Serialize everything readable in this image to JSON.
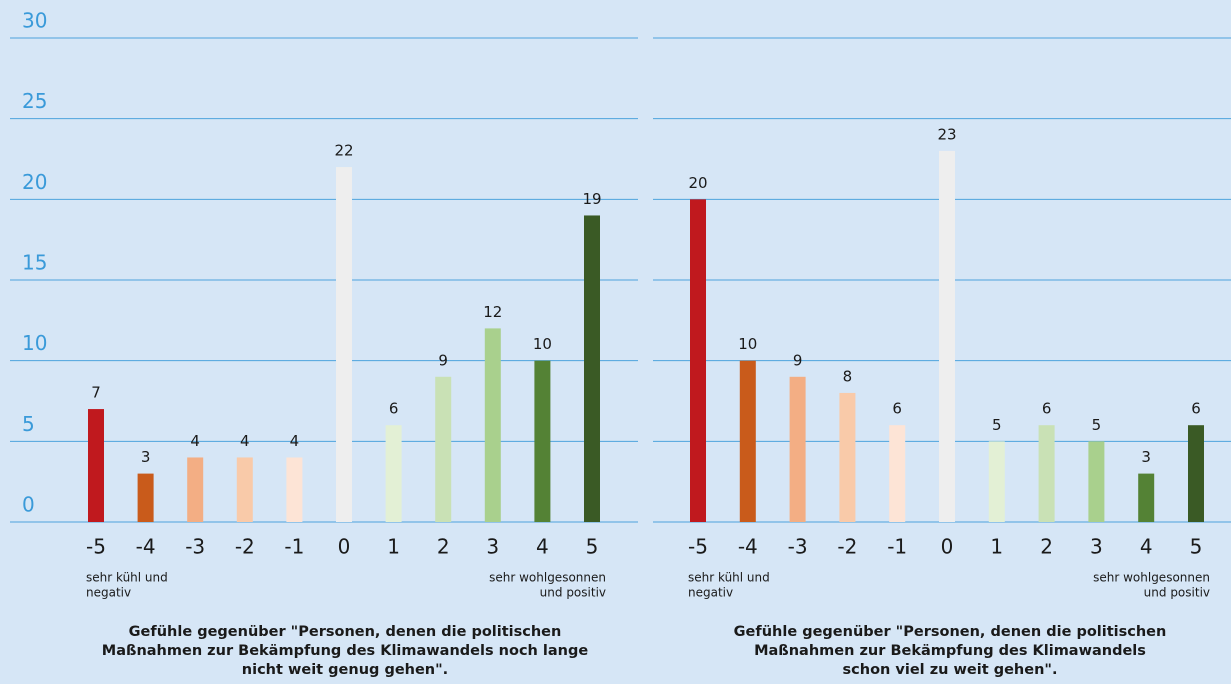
{
  "chart_data": [
    {
      "type": "bar",
      "categories": [
        "-5",
        "-4",
        "-3",
        "-2",
        "-1",
        "0",
        "1",
        "2",
        "3",
        "4",
        "5"
      ],
      "values": [
        7,
        3,
        4,
        4,
        4,
        22,
        6,
        9,
        12,
        10,
        19
      ],
      "colors": [
        "#c0191e",
        "#c95b1b",
        "#f3ae84",
        "#f9caa9",
        "#fde4d6",
        "#eeeeee",
        "#e3f0d5",
        "#c9e1b5",
        "#a9d08d",
        "#548235",
        "#3a5a25"
      ],
      "ylim": [
        0,
        30
      ],
      "yticks": [
        0,
        5,
        10,
        15,
        20,
        25,
        30
      ],
      "grid": true,
      "ytick_labels": true,
      "annotations": [
        [
          "sehr kühl und",
          "negativ"
        ],
        [
          "sehr wohlgesonnen",
          "und positiv"
        ]
      ],
      "caption": [
        "Gefühle gegenüber \"Personen, denen die politischen",
        "Maßnahmen zur Bekämpfung des Klimawandels noch lange",
        "nicht weit genug gehen\"."
      ]
    },
    {
      "type": "bar",
      "categories": [
        "-5",
        "-4",
        "-3",
        "-2",
        "-1",
        "0",
        "1",
        "2",
        "3",
        "4",
        "5"
      ],
      "values": [
        20,
        10,
        9,
        8,
        6,
        23,
        5,
        6,
        5,
        3,
        6
      ],
      "colors": [
        "#c0191e",
        "#c95b1b",
        "#f3ae84",
        "#f9caa9",
        "#fde4d6",
        "#eeeeee",
        "#e3f0d5",
        "#c9e1b5",
        "#a9d08d",
        "#548235",
        "#3a5a25"
      ],
      "ylim": [
        0,
        30
      ],
      "yticks": [
        0,
        5,
        10,
        15,
        20,
        25,
        30
      ],
      "grid": true,
      "ytick_labels": false,
      "annotations": [
        [
          "sehr kühl und",
          "negativ"
        ],
        [
          "sehr wohlgesonnen",
          "und positiv"
        ]
      ],
      "caption": [
        "Gefühle gegenüber \"Personen, denen die politischen",
        "Maßnahmen zur Bekämpfung des Klimawandels",
        "schon viel zu weit gehen\"."
      ]
    }
  ]
}
